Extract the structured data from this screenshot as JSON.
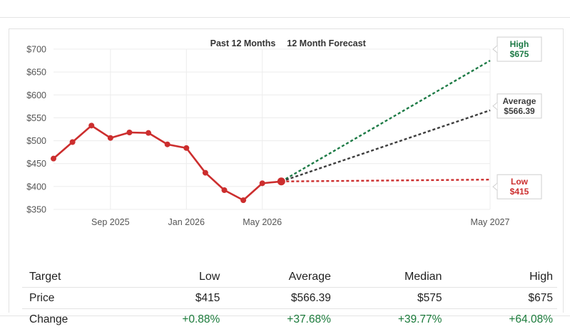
{
  "chart_data": {
    "type": "line",
    "header_labels": [
      "Past 12 Months",
      "12 Month Forecast"
    ],
    "y_ticks": [
      "$700",
      "$650",
      "$600",
      "$550",
      "$500",
      "$450",
      "$400",
      "$350"
    ],
    "y_tick_values": [
      700,
      650,
      600,
      550,
      500,
      450,
      400,
      350
    ],
    "ylim": [
      350,
      700
    ],
    "x_ticks": [
      "Sep 2025",
      "Jan 2026",
      "May 2026",
      "May 2027"
    ],
    "x_tick_months": [
      3,
      7,
      11,
      23
    ],
    "xlim_months": [
      0,
      23
    ],
    "grid": true,
    "history": {
      "months": [
        0,
        1,
        2,
        3,
        4,
        5,
        6,
        7,
        8,
        9,
        10,
        11,
        12
      ],
      "values": [
        461,
        497,
        533,
        506,
        518,
        517,
        492,
        484,
        430,
        392,
        370,
        407,
        411
      ],
      "color": "#cc2e2e"
    },
    "forecast": [
      {
        "label": "High",
        "value_label": "$675",
        "start": 411,
        "end": 675,
        "color": "#1c7a45"
      },
      {
        "label": "Average",
        "value_label": "$566.39",
        "start": 411,
        "end": 566.39,
        "color": "#3d3d3d"
      },
      {
        "label": "Low",
        "value_label": "$415",
        "start": 411,
        "end": 415,
        "color": "#cc2e2e"
      }
    ],
    "forecast_start_month": 12,
    "forecast_end_month": 23
  },
  "table": {
    "headers": [
      "Target",
      "Low",
      "Average",
      "Median",
      "High"
    ],
    "rows": [
      {
        "label": "Price",
        "cells": [
          "$415",
          "$566.39",
          "$575",
          "$675"
        ]
      },
      {
        "label": "Change",
        "cells": [
          "+0.88%",
          "+37.68%",
          "+39.77%",
          "+64.08%"
        ]
      }
    ]
  }
}
